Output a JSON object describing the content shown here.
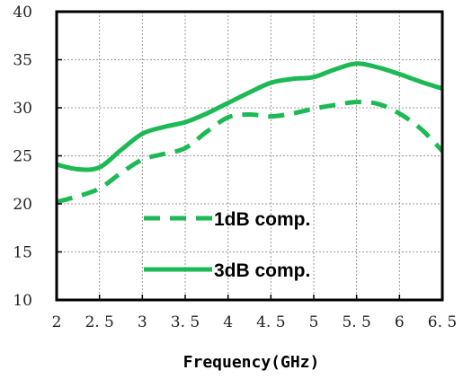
{
  "chart_data": {
    "type": "line",
    "title": "",
    "xlabel": "Frequency(GHz)",
    "ylabel": "",
    "xlim": [
      2,
      6.5
    ],
    "ylim": [
      10,
      40
    ],
    "x_ticks": [
      "2",
      "2.5",
      "3",
      "3.5",
      "4",
      "4.5",
      "5",
      "5.5",
      "6",
      "6.5"
    ],
    "y_ticks": [
      "10",
      "15",
      "20",
      "25",
      "30",
      "35",
      "40"
    ],
    "grid": true,
    "legend_position": "lower-center",
    "series": [
      {
        "name": "1dB comp.",
        "style": "dashed",
        "color": "#1db954",
        "x": [
          2,
          2.25,
          2.5,
          2.75,
          3,
          3.25,
          3.5,
          3.75,
          4,
          4.25,
          4.5,
          4.75,
          5,
          5.25,
          5.5,
          5.75,
          6,
          6.25,
          6.5
        ],
        "values": [
          20.2,
          20.8,
          21.6,
          23.2,
          24.6,
          25.2,
          25.8,
          27.5,
          29.0,
          29.3,
          29.1,
          29.4,
          29.9,
          30.3,
          30.6,
          30.4,
          29.4,
          27.8,
          25.5
        ]
      },
      {
        "name": "3dB comp.",
        "style": "solid",
        "color": "#1db954",
        "x": [
          2,
          2.25,
          2.5,
          2.75,
          3,
          3.25,
          3.5,
          3.75,
          4,
          4.25,
          4.5,
          4.75,
          5,
          5.25,
          5.5,
          5.75,
          6,
          6.25,
          6.5
        ],
        "values": [
          24.1,
          23.6,
          23.8,
          25.6,
          27.3,
          28.0,
          28.5,
          29.4,
          30.5,
          31.6,
          32.6,
          33.0,
          33.2,
          34.0,
          34.6,
          34.2,
          33.5,
          32.7,
          32.0
        ]
      }
    ]
  }
}
